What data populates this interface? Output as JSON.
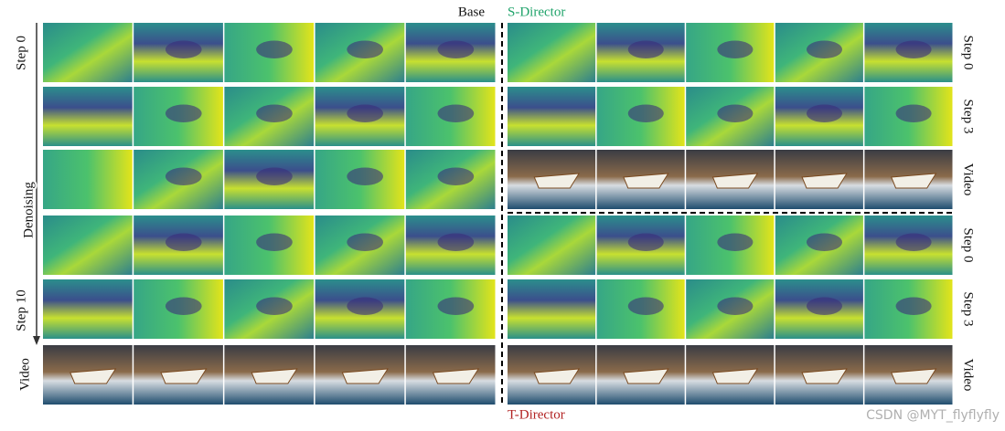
{
  "header": {
    "base": "Base",
    "s_director": "S-Director"
  },
  "footer": {
    "t_director": "T-Director"
  },
  "left_axis": {
    "start": "Step 0",
    "middle": "Denoising",
    "end": "Step 10",
    "video": "Video"
  },
  "right_labels": [
    "Step 0",
    "Step 3",
    "Video",
    "Step 0",
    "Step 3",
    "Video"
  ],
  "watermark": "CSDN @MYT_flyflyfly"
}
